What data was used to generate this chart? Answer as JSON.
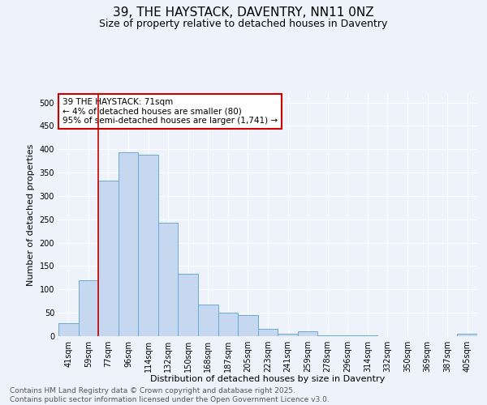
{
  "title": "39, THE HAYSTACK, DAVENTRY, NN11 0NZ",
  "subtitle": "Size of property relative to detached houses in Daventry",
  "xlabel": "Distribution of detached houses by size in Daventry",
  "ylabel": "Number of detached properties",
  "bar_labels": [
    "41sqm",
    "59sqm",
    "77sqm",
    "96sqm",
    "114sqm",
    "132sqm",
    "150sqm",
    "168sqm",
    "187sqm",
    "205sqm",
    "223sqm",
    "241sqm",
    "259sqm",
    "278sqm",
    "296sqm",
    "314sqm",
    "332sqm",
    "350sqm",
    "369sqm",
    "387sqm",
    "405sqm"
  ],
  "bar_values": [
    27,
    120,
    332,
    393,
    388,
    243,
    133,
    68,
    50,
    45,
    16,
    6,
    11,
    2,
    1,
    1,
    0,
    0,
    0,
    0,
    5
  ],
  "bar_color": "#c5d8f0",
  "bar_edge_color": "#6aaad4",
  "vline_x": 1.5,
  "vline_color": "#cc0000",
  "ylim": [
    0,
    520
  ],
  "yticks": [
    0,
    50,
    100,
    150,
    200,
    250,
    300,
    350,
    400,
    450,
    500
  ],
  "annotation_text": "39 THE HAYSTACK: 71sqm\n← 4% of detached houses are smaller (80)\n95% of semi-detached houses are larger (1,741) →",
  "annotation_box_color": "#ffffff",
  "annotation_box_edge": "#cc0000",
  "footer_text": "Contains HM Land Registry data © Crown copyright and database right 2025.\nContains public sector information licensed under the Open Government Licence v3.0.",
  "background_color": "#eef2fa",
  "grid_color": "#ffffff",
  "title_fontsize": 11,
  "subtitle_fontsize": 9,
  "axis_label_fontsize": 8,
  "tick_fontsize": 7,
  "annotation_fontsize": 7.5,
  "footer_fontsize": 6.5
}
